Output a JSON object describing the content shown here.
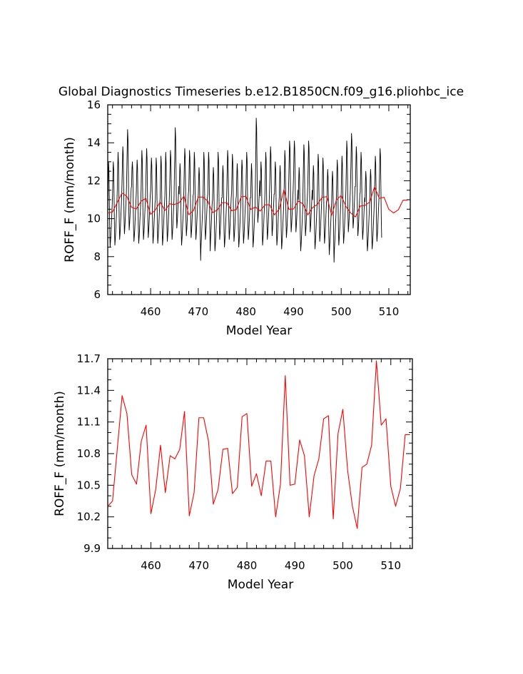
{
  "title": "Global Diagnostics Timeseries b.e12.B1850CN.f09_g16.pliohbc_ice",
  "colors": {
    "monthly": "#000000",
    "annual": "#ff0000",
    "axis": "#000000"
  },
  "chart_data": [
    {
      "type": "line",
      "xlabel": "Model Year",
      "ylabel": "ROFF_F (mm/month)",
      "xlim": [
        451,
        514.5
      ],
      "ylim": [
        6,
        16
      ],
      "xticks": [
        460,
        470,
        480,
        490,
        500,
        510
      ],
      "xtick_labels": [
        "460",
        "470",
        "480",
        "490",
        "500",
        "510"
      ],
      "yticks": [
        6,
        8,
        10,
        12,
        14,
        16
      ],
      "ytick_labels": [
        "6",
        "8",
        "10",
        "12",
        "14",
        "16"
      ],
      "series": [
        {
          "key": "monthly",
          "x_start": 451,
          "x_step": 0.0833333,
          "values": [
            9.9,
            11.8,
            13.0,
            12.5,
            11.0,
            9.4,
            8.5,
            8.8,
            9.2,
            9.6,
            10.1,
            10.6,
            11.2,
            12.3,
            13.0,
            12.6,
            11.1,
            9.5,
            8.6,
            8.9,
            9.3,
            9.8,
            10.2,
            10.8,
            11.5,
            12.6,
            13.5,
            13.0,
            11.5,
            9.8,
            8.9,
            9.2,
            9.6,
            10.1,
            10.6,
            11.1,
            12.0,
            13.0,
            13.8,
            13.4,
            11.8,
            10.1,
            9.2,
            9.5,
            9.9,
            10.4,
            10.9,
            11.4,
            12.5,
            13.7,
            14.7,
            14.2,
            12.5,
            10.5,
            9.4,
            9.7,
            10.1,
            10.6,
            11.1,
            11.6,
            11.7,
            12.6,
            13.0,
            12.6,
            11.1,
            9.5,
            8.8,
            9.1,
            9.4,
            9.9,
            10.4,
            10.9,
            11.4,
            12.4,
            13.1,
            12.7,
            11.2,
            9.6,
            8.7,
            9.0,
            9.4,
            9.9,
            10.3,
            10.8,
            11.5,
            12.8,
            13.6,
            13.1,
            11.5,
            9.8,
            8.9,
            9.2,
            9.6,
            10.1,
            10.6,
            11.1,
            11.9,
            12.9,
            13.7,
            13.2,
            11.6,
            9.9,
            9.0,
            9.3,
            9.7,
            10.2,
            10.7,
            11.2,
            11.5,
            12.5,
            13.2,
            12.8,
            11.3,
            9.6,
            8.7,
            9.0,
            9.4,
            9.9,
            10.3,
            10.8,
            11.0,
            12.2,
            13.2,
            12.8,
            11.2,
            9.5,
            8.7,
            9.0,
            9.4,
            9.8,
            10.3,
            10.8,
            11.1,
            12.2,
            13.3,
            12.9,
            11.3,
            9.6,
            8.6,
            8.9,
            9.3,
            9.8,
            10.3,
            10.8,
            11.2,
            12.4,
            13.5,
            13.0,
            11.4,
            9.7,
            8.8,
            9.1,
            9.5,
            10.0,
            10.5,
            11.0,
            11.7,
            12.7,
            13.6,
            13.2,
            11.6,
            9.8,
            8.9,
            9.2,
            9.6,
            10.1,
            10.6,
            11.1,
            12.4,
            13.5,
            14.8,
            14.3,
            12.6,
            10.6,
            9.5,
            9.8,
            10.2,
            10.7,
            11.2,
            11.7,
            11.3,
            12.3,
            12.9,
            12.5,
            11.0,
            9.4,
            8.6,
            8.9,
            9.3,
            9.8,
            10.2,
            10.7,
            11.8,
            12.9,
            13.7,
            13.3,
            11.7,
            10.0,
            9.1,
            9.4,
            9.8,
            10.3,
            10.8,
            11.3,
            11.5,
            12.6,
            13.6,
            13.2,
            11.6,
            9.9,
            9.0,
            9.3,
            9.7,
            10.2,
            10.7,
            11.2,
            11.3,
            12.4,
            13.5,
            13.1,
            11.5,
            9.8,
            8.9,
            9.2,
            9.6,
            10.1,
            10.6,
            11.1,
            11.2,
            12.1,
            12.7,
            12.3,
            10.8,
            9.2,
            7.8,
            8.6,
            9.0,
            9.5,
            10.0,
            10.5,
            11.1,
            12.3,
            13.5,
            13.1,
            11.5,
            9.8,
            8.9,
            9.2,
            9.6,
            10.1,
            10.6,
            11.1,
            11.3,
            12.5,
            13.5,
            13.1,
            11.5,
            9.8,
            8.3,
            8.9,
            9.3,
            9.8,
            10.3,
            10.8,
            11.0,
            12.0,
            12.7,
            12.3,
            10.8,
            9.2,
            8.3,
            8.6,
            9.0,
            9.5,
            10.0,
            10.5,
            11.3,
            12.5,
            13.5,
            13.1,
            11.5,
            9.8,
            8.9,
            9.2,
            9.6,
            10.1,
            10.6,
            11.1,
            11.1,
            12.1,
            12.8,
            12.4,
            10.9,
            9.3,
            8.5,
            8.8,
            9.2,
            9.7,
            10.2,
            10.7,
            11.6,
            12.7,
            13.6,
            13.2,
            11.6,
            9.9,
            8.9,
            9.2,
            9.6,
            10.1,
            10.6,
            11.1,
            11.4,
            12.5,
            13.4,
            13.0,
            11.4,
            9.7,
            8.8,
            9.1,
            9.5,
            10.0,
            10.5,
            11.0,
            11.2,
            12.2,
            12.9,
            12.5,
            11.0,
            9.4,
            8.5,
            8.8,
            9.2,
            9.7,
            10.2,
            10.7,
            11.4,
            12.4,
            13.1,
            12.7,
            11.2,
            9.6,
            8.7,
            9.0,
            9.4,
            9.9,
            10.4,
            10.9,
            11.5,
            12.6,
            13.5,
            13.1,
            11.5,
            9.8,
            8.9,
            9.2,
            9.6,
            10.1,
            10.6,
            11.1,
            11.1,
            12.1,
            12.9,
            12.5,
            11.0,
            9.4,
            8.5,
            8.8,
            9.2,
            9.7,
            10.2,
            10.7,
            11.9,
            13.5,
            15.3,
            14.8,
            13.0,
            10.9,
            9.8,
            10.1,
            10.5,
            11.0,
            11.5,
            12.0,
            11.2,
            12.2,
            13.0,
            12.6,
            11.1,
            9.5,
            8.6,
            8.9,
            9.3,
            9.8,
            10.3,
            10.8,
            11.4,
            12.5,
            13.5,
            13.1,
            11.5,
            9.8,
            8.9,
            9.2,
            9.6,
            10.1,
            10.6,
            11.1,
            11.8,
            12.9,
            13.8,
            13.4,
            11.8,
            10.1,
            9.1,
            9.4,
            9.8,
            10.3,
            10.8,
            11.3,
            11.3,
            12.3,
            13.0,
            12.6,
            11.1,
            9.5,
            8.6,
            8.9,
            9.3,
            9.8,
            10.3,
            10.8,
            11.1,
            12.1,
            12.8,
            12.4,
            10.9,
            9.3,
            8.4,
            8.7,
            9.1,
            9.6,
            10.1,
            10.6,
            11.2,
            12.4,
            13.6,
            13.2,
            11.6,
            9.9,
            9.0,
            9.3,
            9.7,
            10.2,
            10.7,
            11.2,
            12.1,
            13.2,
            14.1,
            13.7,
            12.1,
            10.3,
            9.3,
            9.6,
            10.0,
            10.5,
            11.0,
            11.5,
            12.2,
            13.3,
            14.1,
            13.7,
            12.1,
            10.3,
            9.3,
            9.6,
            10.0,
            10.5,
            11.0,
            11.5,
            11.0,
            12.0,
            12.7,
            12.3,
            10.8,
            9.2,
            8.3,
            8.6,
            9.0,
            9.5,
            10.0,
            10.5,
            11.8,
            12.9,
            13.9,
            13.5,
            11.9,
            10.1,
            9.1,
            9.4,
            9.8,
            10.3,
            10.8,
            11.3,
            11.9,
            13.0,
            14.1,
            13.7,
            12.1,
            10.3,
            9.3,
            9.6,
            10.0,
            10.5,
            11.0,
            11.5,
            11.0,
            12.1,
            12.8,
            12.4,
            10.9,
            9.3,
            8.4,
            8.7,
            9.1,
            9.6,
            10.1,
            10.6,
            11.5,
            12.6,
            13.4,
            13.0,
            11.4,
            9.7,
            8.8,
            9.1,
            9.5,
            10.0,
            10.5,
            11.0,
            11.3,
            12.4,
            13.2,
            12.8,
            11.3,
            9.6,
            8.7,
            9.0,
            9.4,
            9.9,
            10.4,
            10.9,
            11.0,
            12.0,
            12.6,
            12.2,
            10.7,
            9.1,
            8.1,
            8.5,
            8.9,
            9.4,
            9.9,
            10.4,
            10.9,
            11.9,
            12.5,
            12.1,
            10.6,
            9.0,
            7.7,
            8.4,
            8.8,
            9.3,
            9.8,
            10.3,
            11.2,
            12.3,
            13.1,
            12.7,
            11.2,
            9.5,
            8.6,
            8.9,
            9.3,
            9.8,
            10.3,
            10.8,
            11.3,
            12.4,
            13.3,
            12.9,
            11.3,
            9.6,
            8.7,
            9.0,
            9.4,
            9.9,
            10.4,
            10.9,
            11.6,
            12.8,
            14.1,
            13.7,
            12.1,
            10.3,
            9.3,
            9.6,
            10.0,
            10.5,
            11.0,
            11.5,
            12.3,
            13.4,
            14.5,
            14.1,
            12.4,
            10.5,
            9.5,
            9.8,
            10.2,
            10.7,
            11.2,
            11.7,
            11.7,
            12.8,
            13.8,
            13.4,
            11.8,
            10.1,
            9.1,
            9.4,
            9.8,
            10.3,
            10.8,
            11.3,
            11.4,
            12.5,
            13.5,
            13.1,
            11.5,
            9.8,
            8.9,
            9.2,
            9.6,
            10.1,
            10.6,
            11.1,
            10.9,
            11.9,
            12.5,
            12.1,
            10.6,
            9.0,
            8.3,
            8.6,
            9.0,
            9.5,
            10.0,
            10.5,
            11.0,
            12.0,
            12.6,
            12.2,
            10.7,
            9.1,
            8.4,
            8.7,
            9.1,
            9.6,
            10.1,
            10.6,
            11.4,
            12.4,
            13.3,
            12.9,
            11.3,
            9.6,
            8.8,
            9.1,
            9.5,
            10.0,
            10.5,
            11.0,
            11.8,
            12.9,
            13.7,
            13.3,
            11.7,
            10.0,
            9.0
          ]
        },
        {
          "key": "annual",
          "x": [
            451,
            452,
            453,
            454,
            455,
            456,
            457,
            458,
            459,
            460,
            461,
            462,
            463,
            464,
            465,
            466,
            467,
            468,
            469,
            470,
            471,
            472,
            473,
            474,
            475,
            476,
            477,
            478,
            479,
            480,
            481,
            482,
            483,
            484,
            485,
            486,
            487,
            488,
            489,
            490,
            491,
            492,
            493,
            494,
            495,
            496,
            497,
            498,
            499,
            500,
            501,
            502,
            503,
            504,
            505,
            506,
            507,
            508,
            509,
            510,
            511,
            512,
            513,
            514
          ],
          "values": [
            10.3,
            10.35,
            10.85,
            11.35,
            11.18,
            10.6,
            10.51,
            10.92,
            11.07,
            10.23,
            10.46,
            10.88,
            10.43,
            10.78,
            10.75,
            10.84,
            11.2,
            10.21,
            10.43,
            11.14,
            11.14,
            10.92,
            10.32,
            10.46,
            10.84,
            10.85,
            10.42,
            10.48,
            11.15,
            11.18,
            10.49,
            10.61,
            10.4,
            10.73,
            10.73,
            10.2,
            10.51,
            11.54,
            10.5,
            10.51,
            10.93,
            10.78,
            10.2,
            10.59,
            10.75,
            11.13,
            11.16,
            10.18,
            10.99,
            11.22,
            10.64,
            10.3,
            10.09,
            10.67,
            10.7,
            10.88,
            11.68,
            11.07,
            11.13,
            10.49,
            10.3,
            10.47,
            10.98,
            10.98
          ]
        }
      ]
    },
    {
      "type": "line",
      "xlabel": "Model Year",
      "ylabel": "ROFF_F (mm/month)",
      "xlim": [
        451,
        514.5
      ],
      "ylim": [
        9.9,
        11.7
      ],
      "xticks": [
        460,
        470,
        480,
        490,
        500,
        510
      ],
      "xtick_labels": [
        "460",
        "470",
        "480",
        "490",
        "500",
        "510"
      ],
      "yticks": [
        9.9,
        10.2,
        10.5,
        10.8,
        11.1,
        11.4,
        11.7
      ],
      "ytick_labels": [
        "9.9",
        "10.2",
        "10.5",
        "10.8",
        "11.1",
        "11.4",
        "11.7"
      ],
      "series": [
        {
          "key": "annual",
          "x": [
            451,
            452,
            453,
            454,
            455,
            456,
            457,
            458,
            459,
            460,
            461,
            462,
            463,
            464,
            465,
            466,
            467,
            468,
            469,
            470,
            471,
            472,
            473,
            474,
            475,
            476,
            477,
            478,
            479,
            480,
            481,
            482,
            483,
            484,
            485,
            486,
            487,
            488,
            489,
            490,
            491,
            492,
            493,
            494,
            495,
            496,
            497,
            498,
            499,
            500,
            501,
            502,
            503,
            504,
            505,
            506,
            507,
            508,
            509,
            510,
            511,
            512,
            513,
            514
          ],
          "values": [
            10.3,
            10.35,
            10.85,
            11.35,
            11.18,
            10.6,
            10.51,
            10.92,
            11.07,
            10.23,
            10.46,
            10.88,
            10.43,
            10.78,
            10.75,
            10.84,
            11.2,
            10.21,
            10.43,
            11.14,
            11.14,
            10.92,
            10.32,
            10.46,
            10.84,
            10.85,
            10.42,
            10.48,
            11.15,
            11.18,
            10.49,
            10.61,
            10.4,
            10.73,
            10.73,
            10.2,
            10.51,
            11.54,
            10.5,
            10.51,
            10.93,
            10.78,
            10.2,
            10.59,
            10.75,
            11.13,
            11.16,
            10.18,
            10.99,
            11.22,
            10.64,
            10.3,
            10.09,
            10.67,
            10.7,
            10.88,
            11.68,
            11.07,
            11.13,
            10.49,
            10.3,
            10.47,
            10.98,
            10.98
          ]
        }
      ]
    }
  ]
}
